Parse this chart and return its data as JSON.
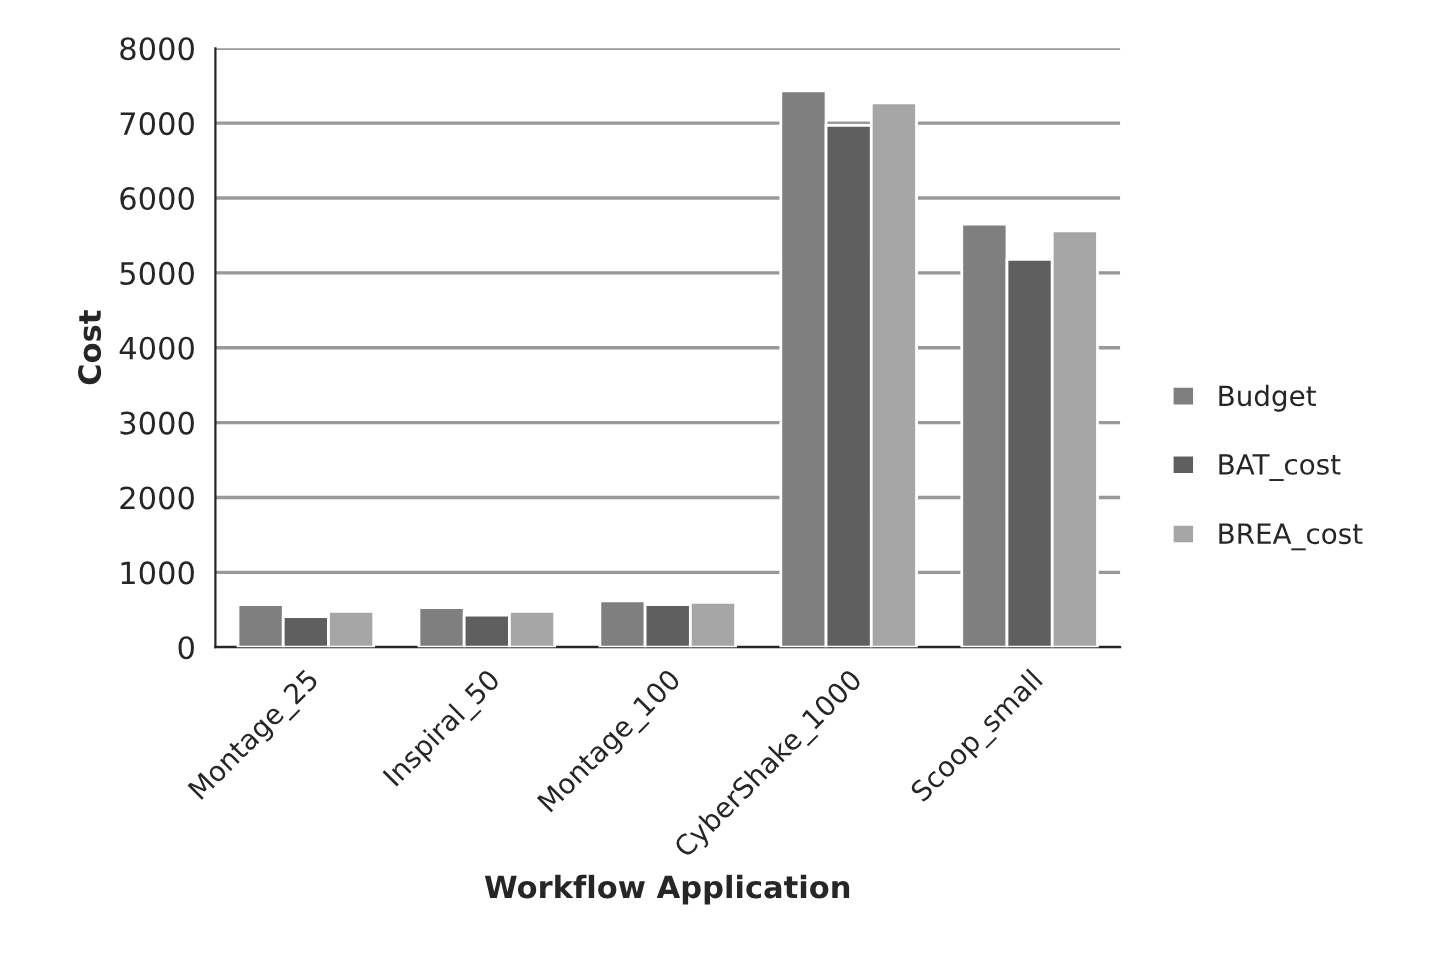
{
  "chart_data": {
    "type": "bar",
    "xlabel": "Workflow Application",
    "ylabel": "Cost",
    "categories": [
      "Montage_25",
      "Inspiral_50",
      "Montage_100",
      "CyberShake_1000",
      "Scoop_small"
    ],
    "series": [
      {
        "name": "Budget",
        "color": "#7f7f7f",
        "values": [
          570,
          530,
          620,
          7430,
          5650
        ]
      },
      {
        "name": "BAT_cost",
        "color": "#5f5f5f",
        "values": [
          410,
          430,
          570,
          6970,
          5180
        ]
      },
      {
        "name": "BREA_cost",
        "color": "#a6a6a6",
        "values": [
          480,
          480,
          600,
          7270,
          5560
        ]
      }
    ],
    "ylim": [
      0,
      8000
    ],
    "yticks": [
      0,
      1000,
      2000,
      3000,
      4000,
      5000,
      6000,
      7000,
      8000
    ],
    "grid": "y",
    "legend": "right"
  }
}
